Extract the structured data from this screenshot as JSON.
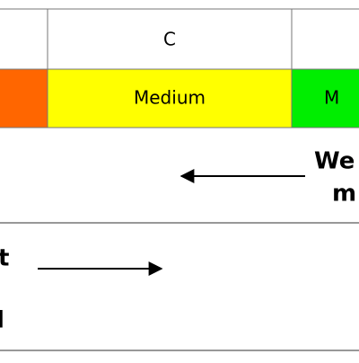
{
  "table": {
    "header": "C",
    "levels": [
      "Medium",
      "M"
    ]
  },
  "labels": {
    "right": [
      "We",
      "m"
    ],
    "left": [
      "t",
      "l"
    ]
  }
}
